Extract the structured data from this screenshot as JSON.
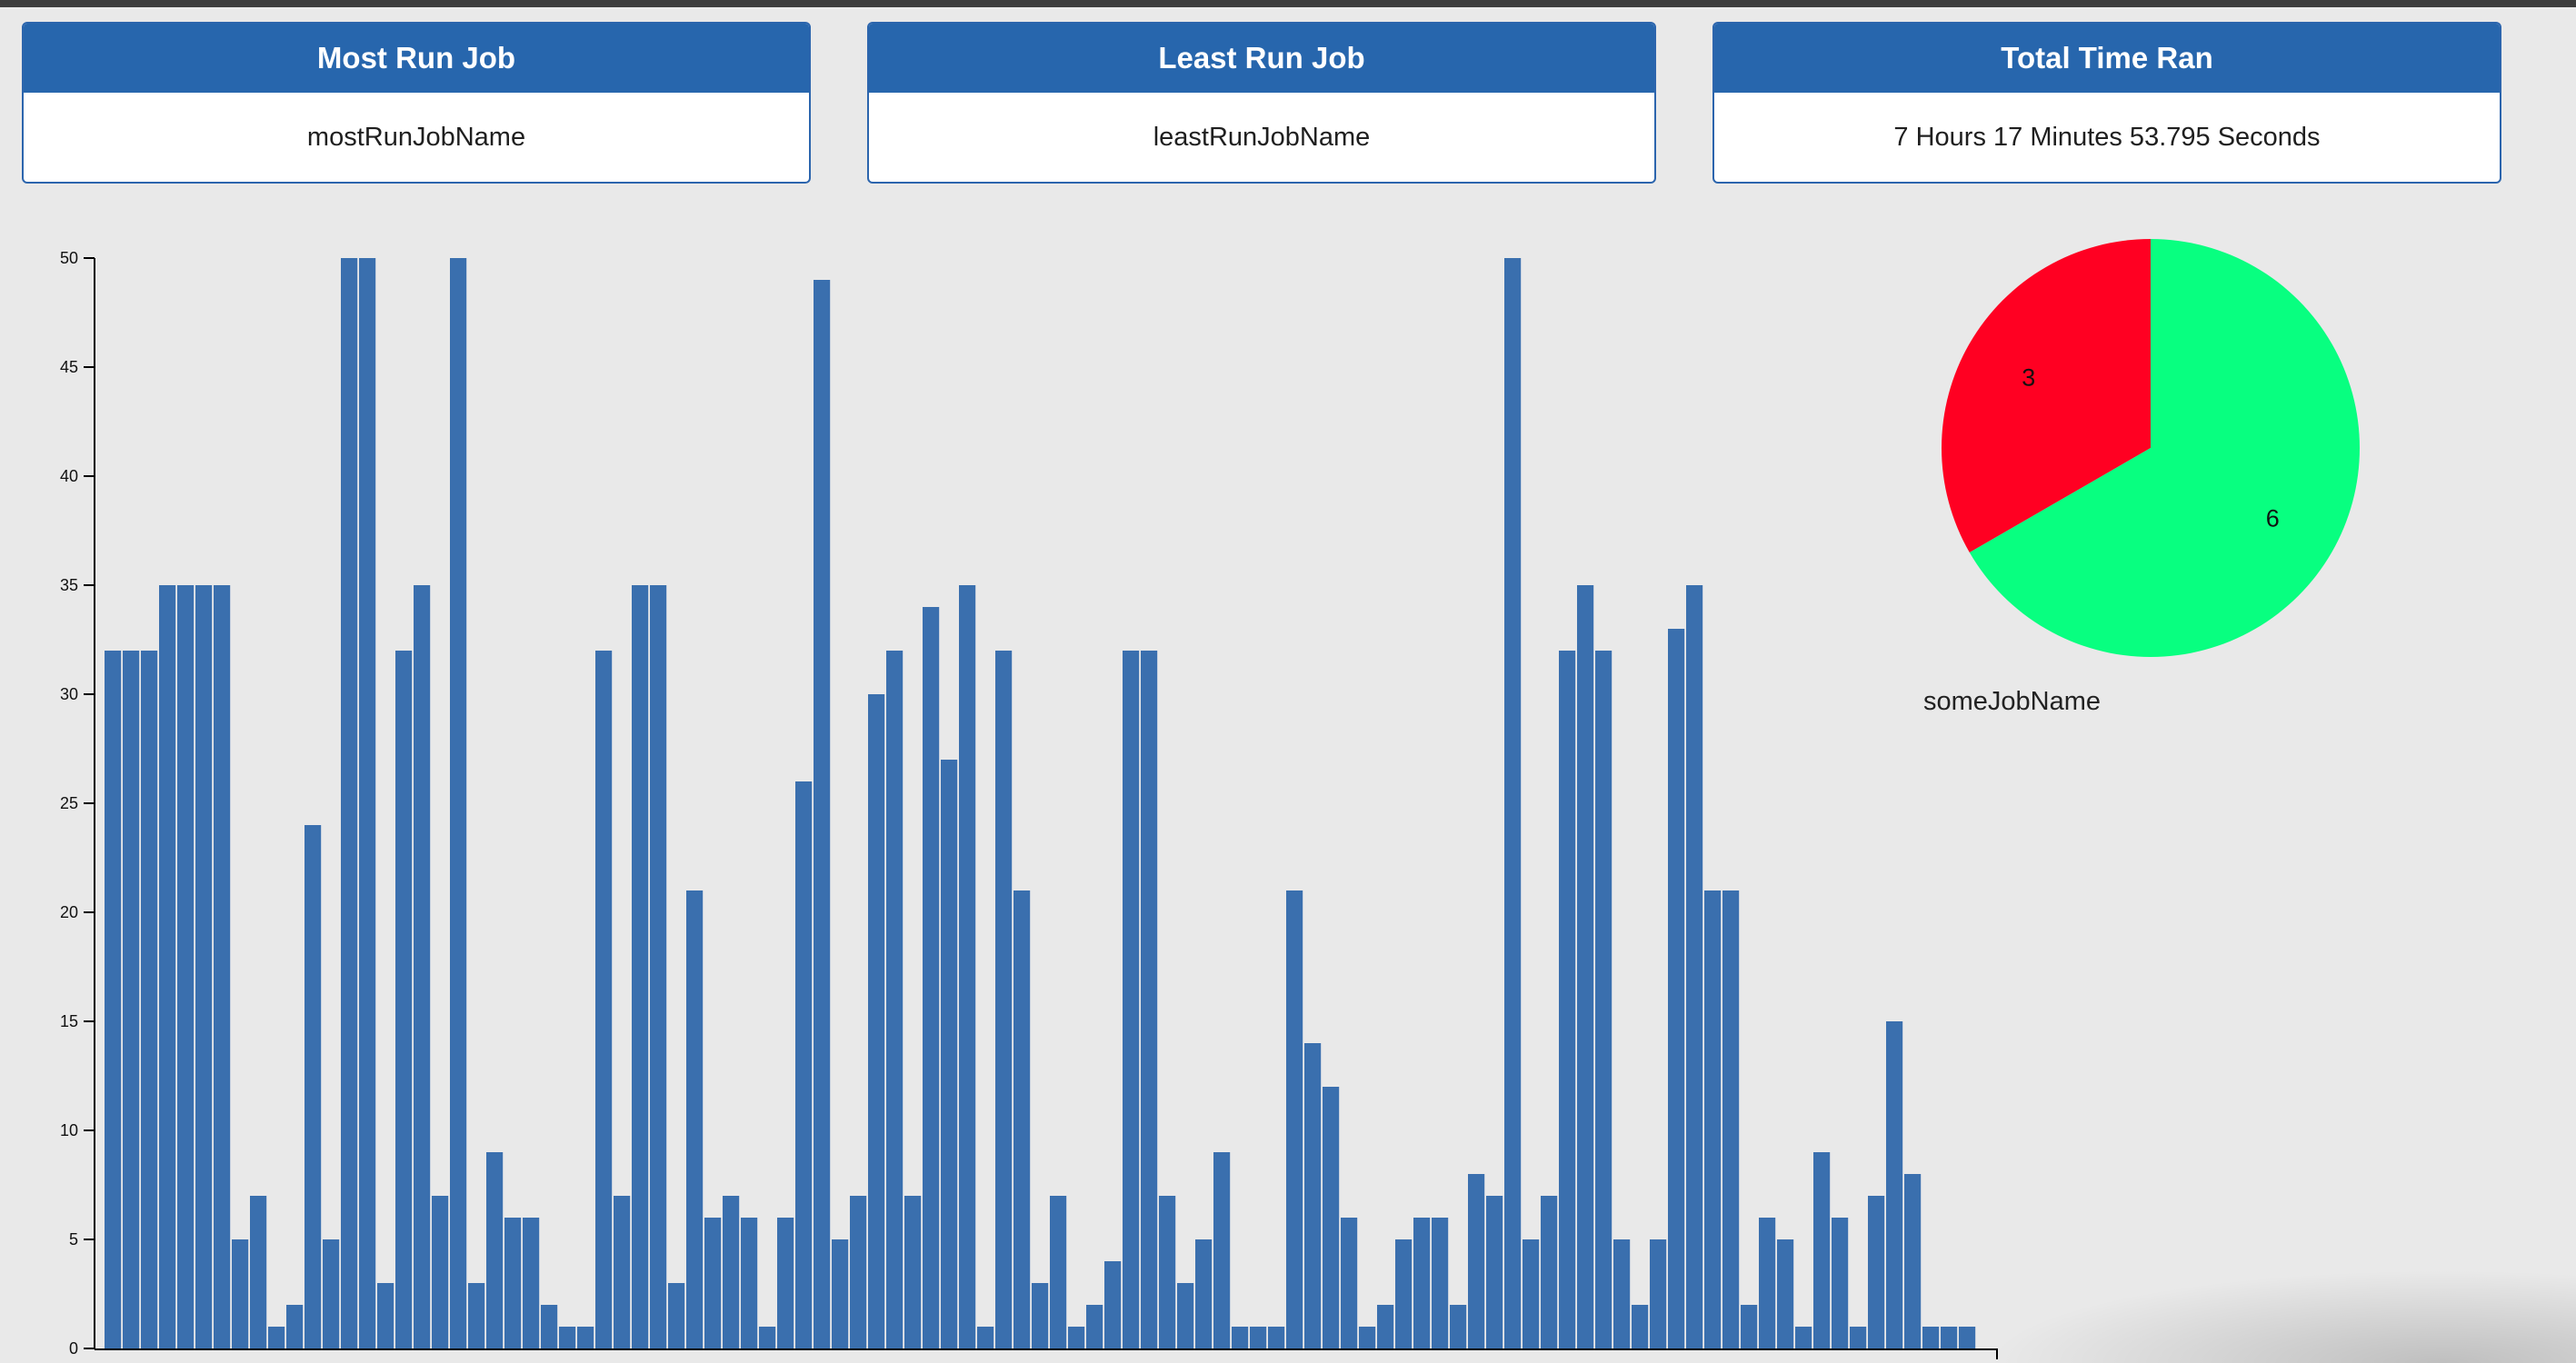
{
  "cards": {
    "most_run": {
      "title": "Most Run Job",
      "value": "mostRunJobName"
    },
    "least_run": {
      "title": "Least Run Job",
      "value": "leastRunJobName"
    },
    "total_time": {
      "title": "Total Time Ran",
      "value": "7 Hours 17 Minutes 53.795 Seconds"
    }
  },
  "pie_caption": "someJobName",
  "colors": {
    "card_header": "#2766ad",
    "bar": "#3a6fae",
    "pie_fail": "#ff0022",
    "pie_success": "#08ff80",
    "background": "#e9e9e9"
  },
  "chart_data": [
    {
      "type": "bar",
      "title": "",
      "xlabel": "",
      "ylabel": "",
      "ylim": [
        0,
        50
      ],
      "yticks": [
        0,
        5,
        10,
        15,
        20,
        25,
        30,
        35,
        40,
        45,
        50
      ],
      "values": [
        32,
        32,
        32,
        35,
        35,
        35,
        35,
        5,
        7,
        1,
        2,
        24,
        5,
        50,
        50,
        3,
        32,
        35,
        7,
        50,
        3,
        9,
        6,
        6,
        2,
        1,
        1,
        32,
        7,
        35,
        35,
        3,
        21,
        6,
        7,
        6,
        1,
        6,
        26,
        49,
        5,
        7,
        30,
        32,
        7,
        34,
        27,
        35,
        1,
        32,
        21,
        3,
        7,
        1,
        2,
        4,
        32,
        32,
        7,
        3,
        5,
        9,
        1,
        1,
        1,
        21,
        14,
        12,
        6,
        1,
        2,
        5,
        6,
        6,
        2,
        8,
        7,
        50,
        5,
        7,
        32,
        35,
        32,
        5,
        2,
        5,
        33,
        35,
        21,
        21,
        2,
        6,
        5,
        1,
        9,
        6,
        1,
        7,
        15,
        8,
        1,
        1,
        1
      ]
    },
    {
      "type": "pie",
      "values": [
        3,
        6
      ],
      "labels": [
        "3",
        "6"
      ],
      "colors": [
        "#ff0022",
        "#08ff80"
      ]
    }
  ]
}
